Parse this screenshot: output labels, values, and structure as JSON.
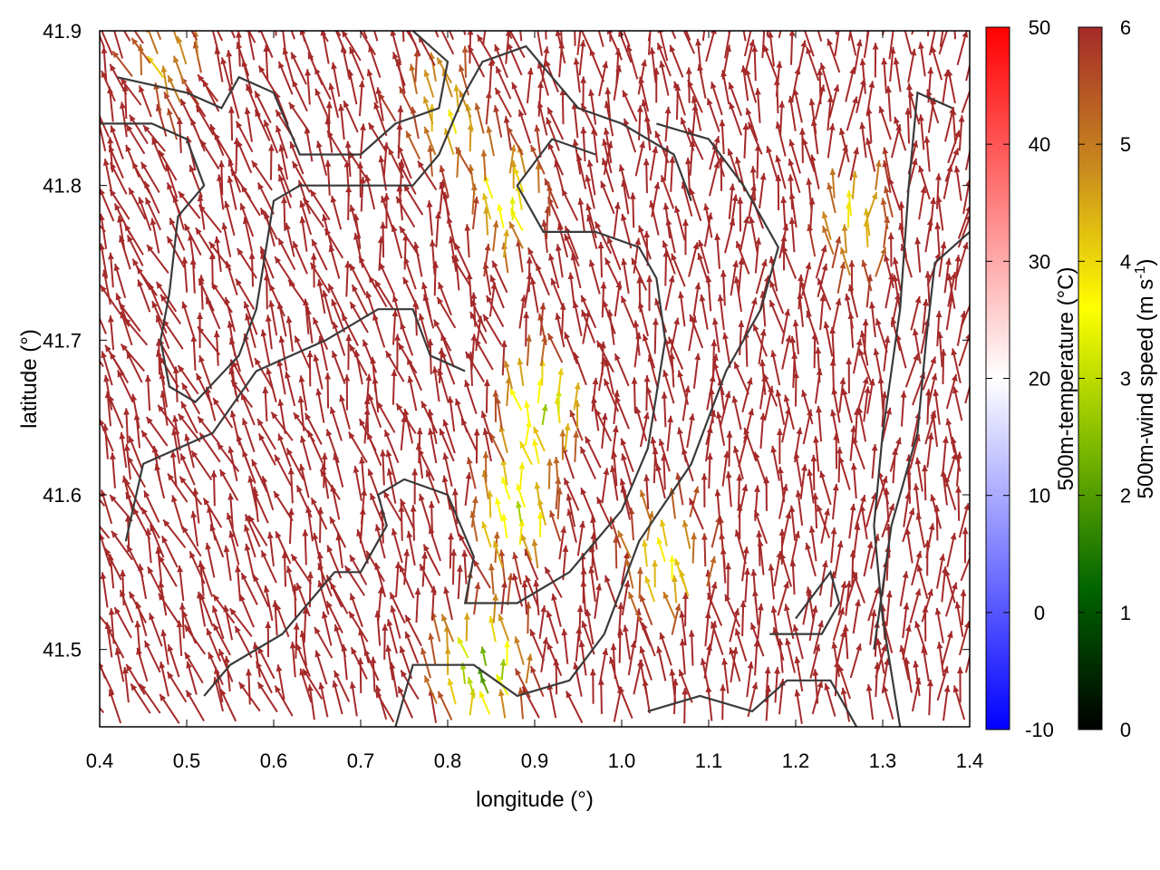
{
  "chart_data": {
    "type": "vector-field",
    "title": "",
    "xlabel": "longitude (°)",
    "ylabel": "latitude (°)",
    "xlim": [
      0.4,
      1.4
    ],
    "ylim": [
      41.45,
      41.9
    ],
    "x_ticks": [
      "0.4",
      "0.5",
      "0.6",
      "0.7",
      "0.8",
      "0.9",
      "1.0",
      "1.1",
      "1.2",
      "1.3",
      "1.4"
    ],
    "y_ticks": [
      "41.5",
      "41.6",
      "41.7",
      "41.8",
      "41.9"
    ],
    "x_tick_values": [
      0.4,
      0.5,
      0.6,
      0.7,
      0.8,
      0.9,
      1.0,
      1.1,
      1.2,
      1.3,
      1.4
    ],
    "y_tick_values": [
      41.5,
      41.6,
      41.7,
      41.8,
      41.9
    ],
    "temperature_colorbar": {
      "label": "500m-temperature (°C)",
      "range": [
        -10,
        50
      ],
      "ticks": [
        "-10",
        "0",
        "10",
        "20",
        "30",
        "40",
        "50"
      ],
      "tick_values": [
        -10,
        0,
        10,
        20,
        30,
        40,
        50
      ],
      "colors": [
        "#0000ff",
        "#ffffff",
        "#ff0000"
      ]
    },
    "wind_colorbar": {
      "label": "500m-wind speed (m s-1)",
      "label_main": "500m-wind speed (m s",
      "label_sup": "-1",
      "label_end": ")",
      "range": [
        0,
        6
      ],
      "ticks": [
        "0",
        "1",
        "2",
        "3",
        "4",
        "5",
        "6"
      ],
      "tick_values": [
        0,
        1,
        2,
        3,
        4,
        5,
        6
      ],
      "colors": [
        "#000000",
        "#006400",
        "#7cb800",
        "#ffff00",
        "#c98a1e",
        "#a52a2a"
      ]
    },
    "arrow_color_scale": "wind speed",
    "dominant_arrow_color": "#a52a2a",
    "dominant_wind_direction": "southerly to south-easterly (arrows pointing north / north-west)",
    "low_speed_zones": [
      {
        "lon": 0.87,
        "lat": 41.78,
        "speed": 3.5
      },
      {
        "lon": 0.8,
        "lat": 41.84,
        "speed": 4.0
      },
      {
        "lon": 0.91,
        "lat": 41.65,
        "speed": 3.0
      },
      {
        "lon": 0.88,
        "lat": 41.58,
        "speed": 3.0
      },
      {
        "lon": 0.84,
        "lat": 41.48,
        "speed": 2.0
      },
      {
        "lon": 1.05,
        "lat": 41.55,
        "speed": 3.5
      },
      {
        "lon": 1.27,
        "lat": 41.77,
        "speed": 4.0
      },
      {
        "lon": 0.48,
        "lat": 41.87,
        "speed": 4.5
      }
    ],
    "contour_lines": "dark gray terrain/coastline contours",
    "contour_color": "#3a3a3a"
  }
}
